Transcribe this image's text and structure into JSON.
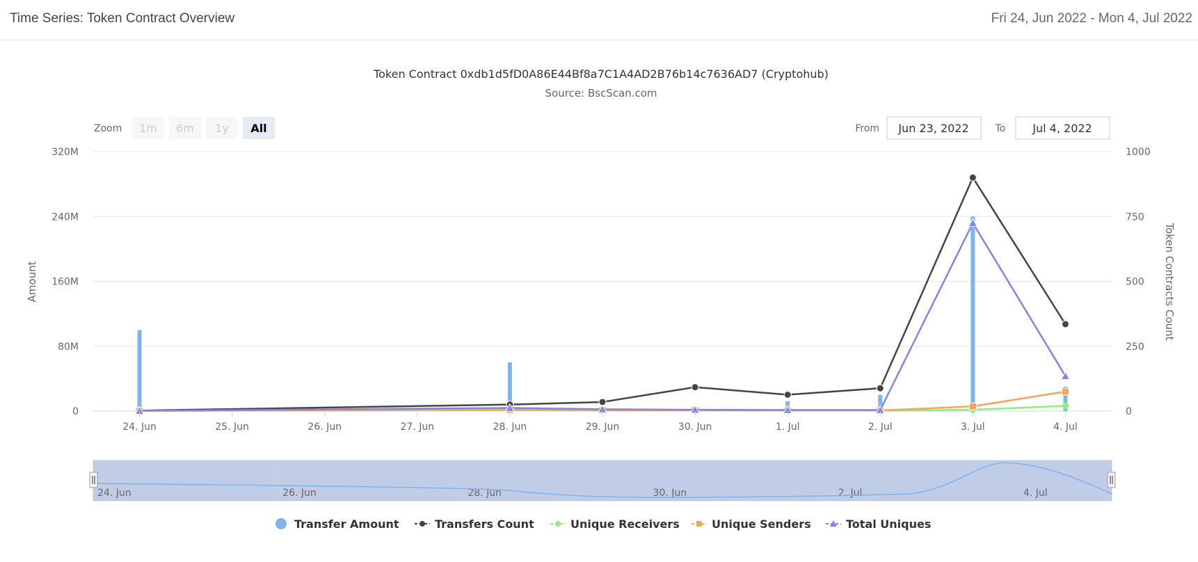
{
  "header": {
    "title": "Time Series: Token Contract Overview",
    "date_range": "Fri 24, Jun 2022 - Mon 4, Jul 2022"
  },
  "range_selector": {
    "zoom_label": "Zoom",
    "buttons": [
      {
        "label": "1m",
        "active": false
      },
      {
        "label": "6m",
        "active": false
      },
      {
        "label": "1y",
        "active": false
      },
      {
        "label": "All",
        "active": true
      }
    ],
    "from_label": "From",
    "from_value": "Jun 23, 2022",
    "to_label": "To",
    "to_value": "Jul 4, 2022"
  },
  "navigator": {
    "labels": [
      "24. Jun",
      "26. Jun",
      "28. Jun",
      "30. Jun",
      "2. Jul",
      "4. Jul"
    ]
  },
  "chart_data": {
    "type": "bar",
    "title": "Token Contract 0xdb1d5fD0A86E44Bf8a7C1A4AD2B76b14c7636AD7 (Cryptohub)",
    "subtitle": "Source: BscScan.com",
    "categories": [
      "24. Jun",
      "25. Jun",
      "26. Jun",
      "27. Jun",
      "28. Jun",
      "29. Jun",
      "30. Jun",
      "1. Jul",
      "2. Jul",
      "3. Jul",
      "4. Jul"
    ],
    "ylabel": "Amount",
    "ylabel_right": "Token Contracts Count",
    "yticks": [
      "0",
      "80M",
      "160M",
      "240M",
      "320M"
    ],
    "yticks_right": [
      "0",
      "250",
      "500",
      "750",
      "1000"
    ],
    "ylim": [
      0,
      320000000
    ],
    "ylim_right": [
      0,
      1000
    ],
    "grid": true,
    "legend_position": "bottom",
    "series": [
      {
        "name": "Transfer Amount",
        "axis": "left",
        "kind": "bar",
        "color": "#7cb5ec",
        "values": [
          100000000,
          0,
          0,
          0,
          60000000,
          500000,
          1000000,
          12000000,
          20000000,
          240000000,
          30000000
        ]
      },
      {
        "name": "Transfers Count",
        "axis": "right",
        "kind": "line",
        "marker": "circle",
        "color": "#434348",
        "values": [
          2,
          null,
          null,
          null,
          25,
          35,
          92,
          63,
          88,
          900,
          335
        ]
      },
      {
        "name": "Unique Receivers",
        "axis": "right",
        "kind": "line",
        "marker": "diamond",
        "color": "#90ed7d",
        "values": [
          1,
          null,
          null,
          null,
          4,
          3,
          2,
          2,
          2,
          5,
          20
        ]
      },
      {
        "name": "Unique Senders",
        "axis": "right",
        "kind": "line",
        "marker": "square",
        "color": "#f7a35c",
        "values": [
          1,
          null,
          null,
          null,
          5,
          3,
          3,
          2,
          2,
          18,
          75
        ]
      },
      {
        "name": "Total Uniques",
        "axis": "right",
        "kind": "line",
        "marker": "triangle",
        "color": "#8085e9",
        "values": [
          1,
          null,
          null,
          null,
          12,
          7,
          5,
          4,
          4,
          725,
          135
        ]
      }
    ]
  }
}
